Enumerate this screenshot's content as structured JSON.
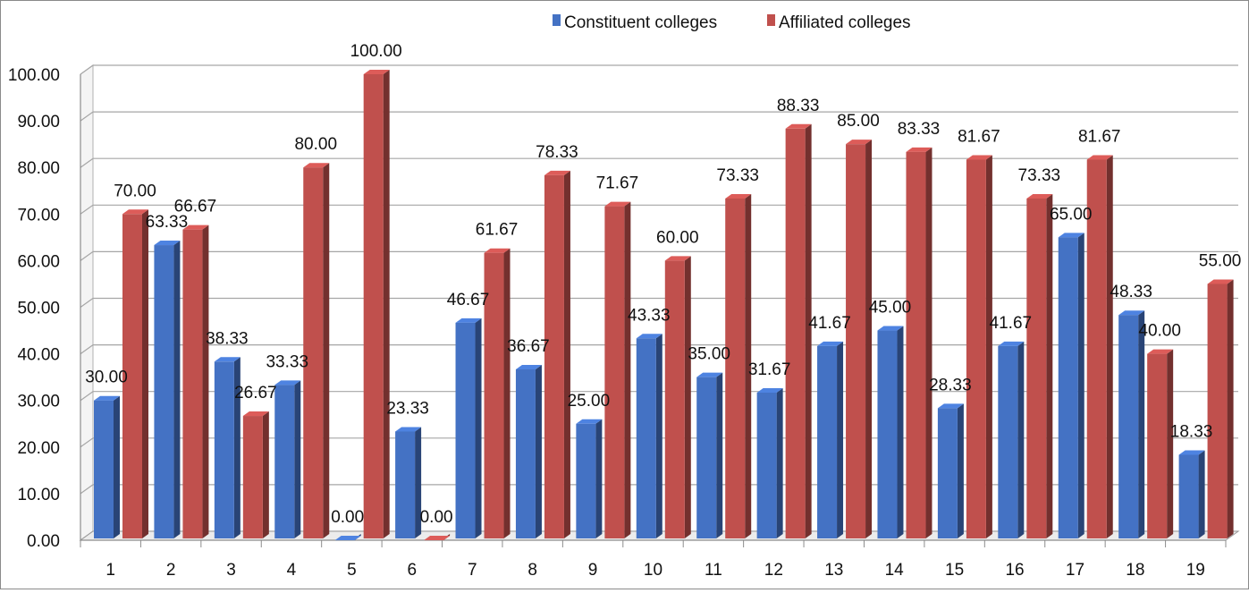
{
  "chart_data": {
    "type": "bar",
    "categories": [
      "1",
      "2",
      "3",
      "4",
      "5",
      "6",
      "7",
      "8",
      "9",
      "10",
      "11",
      "12",
      "13",
      "14",
      "15",
      "16",
      "17",
      "18",
      "19"
    ],
    "series": [
      {
        "name": "Constituent colleges",
        "color": "#4472C4",
        "values": [
          30.0,
          63.33,
          38.33,
          33.33,
          0.0,
          23.33,
          46.67,
          36.67,
          25.0,
          43.33,
          35.0,
          31.67,
          41.67,
          45.0,
          28.33,
          41.67,
          65.0,
          48.33,
          18.33
        ],
        "labels": [
          "30.00",
          "63.33",
          "38.33",
          "33.33",
          "0.00",
          "23.33",
          "46.67",
          "36.67",
          "25.00",
          "43.33",
          "35.00",
          "31.67",
          "41.67",
          "45.00",
          "28.33",
          "41.67",
          "65.00",
          "48.33",
          "18.33"
        ]
      },
      {
        "name": "Affiliated colleges",
        "color": "#C0504D",
        "values": [
          70.0,
          66.67,
          26.67,
          80.0,
          100.0,
          0.0,
          61.67,
          78.33,
          71.67,
          60.0,
          73.33,
          88.33,
          85.0,
          83.33,
          81.67,
          73.33,
          81.67,
          40.0,
          55.0
        ],
        "labels": [
          "70.00",
          "66.67",
          "26.67",
          "80.00",
          "100.00",
          "0.00",
          "61.67",
          "78.33",
          "71.67",
          "60.00",
          "73.33",
          "88.33",
          "85.00",
          "83.33",
          "81.67",
          "73.33",
          "81.67",
          "40.00",
          "55.00"
        ]
      }
    ],
    "y_ticks": [
      "0.00",
      "10.00",
      "20.00",
      "30.00",
      "40.00",
      "50.00",
      "60.00",
      "70.00",
      "80.00",
      "90.00",
      "100.00"
    ],
    "ylim": [
      0,
      100
    ],
    "grid": true,
    "legend_position": "top"
  }
}
